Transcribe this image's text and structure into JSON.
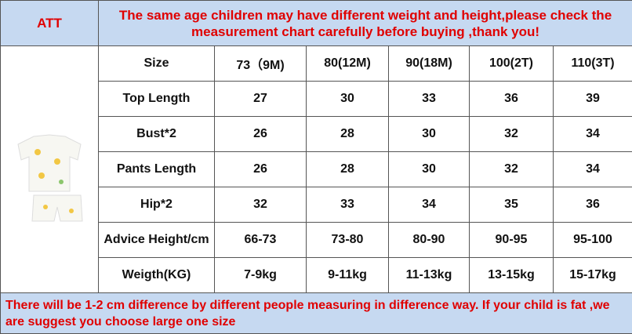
{
  "header": {
    "tag": "ATT",
    "notice": "The same age children may have different weight and height,please check the measurement chart carefully before buying ,thank you!"
  },
  "table": {
    "columns": [
      "Size",
      "73（9M)",
      "80(12M)",
      "90(18M)",
      "100(2T)",
      "110(3T)"
    ],
    "rows": [
      [
        "Top Length",
        "27",
        "30",
        "33",
        "36",
        "39"
      ],
      [
        "Bust*2",
        "26",
        "28",
        "30",
        "32",
        "34"
      ],
      [
        "Pants Length",
        "26",
        "28",
        "30",
        "32",
        "34"
      ],
      [
        "Hip*2",
        "32",
        "33",
        "34",
        "35",
        "36"
      ],
      [
        "Advice Height/cm",
        "66-73",
        "73-80",
        "80-90",
        "90-95",
        "95-100"
      ],
      [
        "Weigth(KG)",
        "7-9kg",
        "9-11kg",
        "11-13kg",
        "13-15kg",
        "15-17kg"
      ]
    ]
  },
  "footer": {
    "note": "There will be 1-2 cm difference by different people measuring in difference way. If your child is fat ,we are suggest you choose large one size"
  }
}
